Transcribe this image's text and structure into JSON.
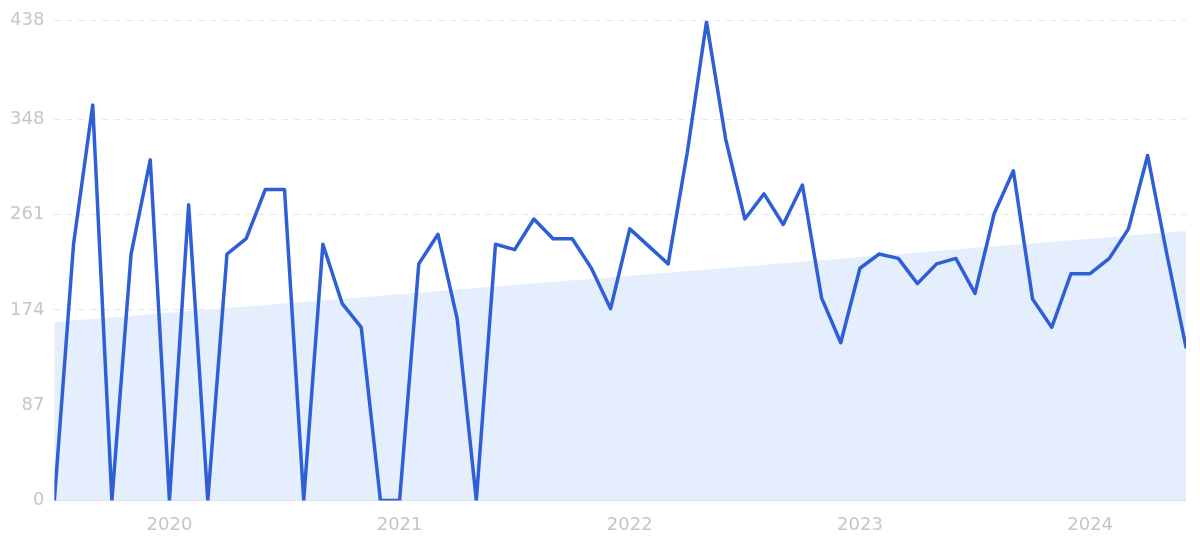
{
  "chart_data": {
    "type": "line",
    "x": [
      "2019-07",
      "2019-08",
      "2019-09",
      "2019-10",
      "2019-11",
      "2019-12",
      "2020-01",
      "2020-02",
      "2020-03",
      "2020-04",
      "2020-05",
      "2020-06",
      "2020-07",
      "2020-08",
      "2020-09",
      "2020-10",
      "2020-11",
      "2020-12",
      "2021-01",
      "2021-02",
      "2021-03",
      "2021-04",
      "2021-05",
      "2021-06",
      "2021-07",
      "2021-08",
      "2021-09",
      "2021-10",
      "2021-11",
      "2021-12",
      "2022-01",
      "2022-02",
      "2022-03",
      "2022-04",
      "2022-05",
      "2022-06",
      "2022-07",
      "2022-08",
      "2022-09",
      "2022-10",
      "2022-11",
      "2022-12",
      "2023-01",
      "2023-02",
      "2023-03",
      "2023-04",
      "2023-05",
      "2023-06",
      "2023-07",
      "2023-08",
      "2023-09",
      "2023-10",
      "2023-11",
      "2023-12",
      "2024-01",
      "2024-02",
      "2024-03",
      "2024-04",
      "2024-05",
      "2024-06"
    ],
    "series": [
      {
        "type": "area",
        "color": "#e4eefc",
        "x": [
          "2019-07",
          "2024-06"
        ],
        "values": [
          163,
          246
        ]
      },
      {
        "type": "line",
        "color": "#2f5fd6",
        "values": [
          0,
          234,
          361,
          0,
          225,
          311,
          0,
          270,
          0,
          225,
          239,
          284,
          284,
          0,
          234,
          180,
          158,
          0,
          0,
          216,
          243,
          166,
          0,
          234,
          229,
          257,
          239,
          239,
          212,
          175,
          248,
          232,
          216,
          318,
          437,
          330,
          257,
          280,
          252,
          288,
          185,
          144,
          212,
          225,
          221,
          198,
          216,
          221,
          189,
          262,
          301,
          184,
          158,
          207,
          207,
          221,
          248,
          315,
          225,
          140
        ]
      }
    ],
    "xlim": [
      "2019-07",
      "2024-06"
    ],
    "xticks": [
      {
        "value": "2020-01",
        "label": "2020"
      },
      {
        "value": "2021-01",
        "label": "2021"
      },
      {
        "value": "2022-01",
        "label": "2022"
      },
      {
        "value": "2023-01",
        "label": "2023"
      },
      {
        "value": "2024-01",
        "label": "2024"
      }
    ],
    "ylim": [
      0,
      438
    ],
    "yticks": [
      0,
      87,
      174,
      261,
      348,
      438
    ],
    "grid": "y",
    "marker": "none",
    "line_style": "solid"
  }
}
